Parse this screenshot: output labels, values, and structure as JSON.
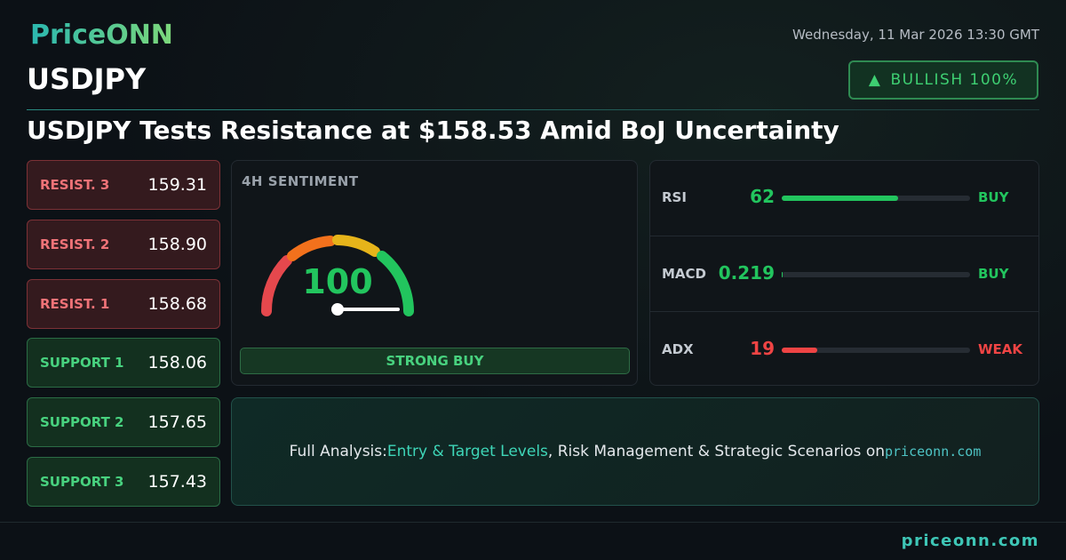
{
  "header": {
    "logo": "PriceONN",
    "datetime": "Wednesday, 11 Mar 2026 13:30 GMT",
    "symbol": "USDJPY",
    "badge": "BULLISH 100%"
  },
  "headline": "USDJPY Tests Resistance at $158.53 Amid BoJ Uncertainty",
  "levels": [
    {
      "label": "RESIST. 3",
      "value": "159.31",
      "kind": "resist"
    },
    {
      "label": "RESIST. 2",
      "value": "158.90",
      "kind": "resist"
    },
    {
      "label": "RESIST. 1",
      "value": "158.68",
      "kind": "resist"
    },
    {
      "label": "SUPPORT 1",
      "value": "158.06",
      "kind": "support"
    },
    {
      "label": "SUPPORT 2",
      "value": "157.65",
      "kind": "support"
    },
    {
      "label": "SUPPORT 3",
      "value": "157.43",
      "kind": "support"
    }
  ],
  "sentiment": {
    "title": "4H SENTIMENT",
    "value": 100,
    "verdict": "STRONG BUY"
  },
  "indicators": [
    {
      "name": "RSI",
      "value": 62,
      "signal": "BUY",
      "color": "#22c55e"
    },
    {
      "name": "MACD",
      "value": 0.219,
      "signal": "BUY",
      "color": "#22c55e"
    },
    {
      "name": "ADX",
      "value": 19,
      "signal": "WEAK",
      "color": "#ef4444"
    }
  ],
  "cta": {
    "prefix": "Full Analysis:",
    "highlight": "Entry & Target Levels",
    "middle": ", Risk Management & Strategic Scenarios on",
    "link": "priceonn.com"
  },
  "footer": "priceonn.com"
}
